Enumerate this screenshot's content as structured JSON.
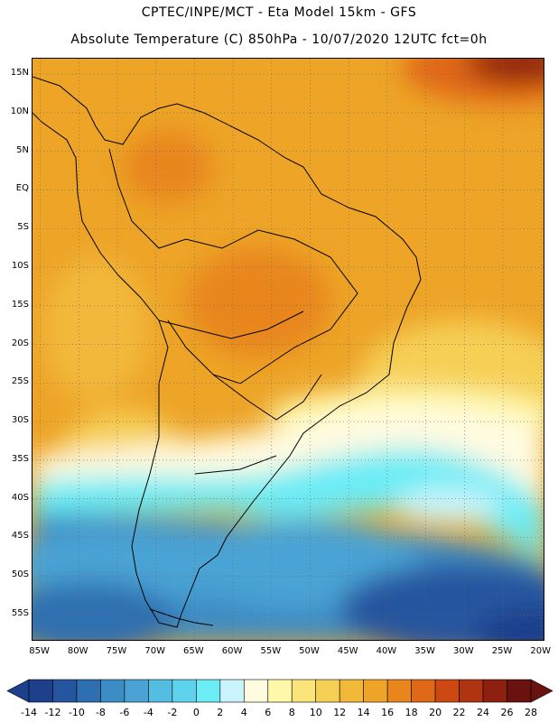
{
  "header": {
    "line1": "CPTEC/INPE/MCT -  Eta Model 15km - GFS",
    "line2": "Absolute Temperature (C) 850hPa - 10/07/2020 12UTC fct=0h"
  },
  "map": {
    "lon_range": [
      -86,
      -19.5
    ],
    "lat_range": [
      17,
      -58.5
    ],
    "lat_ticks": [
      "15N",
      "10N",
      "5N",
      "EQ",
      "5S",
      "10S",
      "15S",
      "20S",
      "25S",
      "30S",
      "35S",
      "40S",
      "45S",
      "50S",
      "55S"
    ],
    "lat_values": [
      15,
      10,
      5,
      0,
      -5,
      -10,
      -15,
      -20,
      -25,
      -30,
      -35,
      -40,
      -45,
      -50,
      -55
    ],
    "lon_ticks": [
      "85W",
      "80W",
      "75W",
      "70W",
      "65W",
      "60W",
      "55W",
      "50W",
      "45W",
      "40W",
      "35W",
      "30W",
      "25W",
      "20W"
    ],
    "lon_values": [
      -85,
      -80,
      -75,
      -70,
      -65,
      -60,
      -55,
      -50,
      -45,
      -40,
      -35,
      -30,
      -25,
      -20
    ],
    "grid": "dotted",
    "field": "temperature 850hPa"
  },
  "colorbar": {
    "labels": [
      "-14",
      "-12",
      "-10",
      "-8",
      "-6",
      "-4",
      "-2",
      "0",
      "2",
      "4",
      "6",
      "8",
      "10",
      "12",
      "14",
      "16",
      "18",
      "20",
      "22",
      "24",
      "26",
      "28"
    ],
    "colors": [
      "#1e3f8c",
      "#25559f",
      "#2d6fb0",
      "#3c8cc5",
      "#4aa3d4",
      "#55bde2",
      "#5fd3ec",
      "#6cecf5",
      "#c9f4fb",
      "#fffbe1",
      "#fff8a8",
      "#fbe57b",
      "#f6cf55",
      "#f2b83a",
      "#eda427",
      "#e8861c",
      "#e06816",
      "#cc4a12",
      "#b03410",
      "#8e2010",
      "#6a1210"
    ],
    "low_color": "#1e3f8c",
    "high_color": "#6a1210"
  }
}
